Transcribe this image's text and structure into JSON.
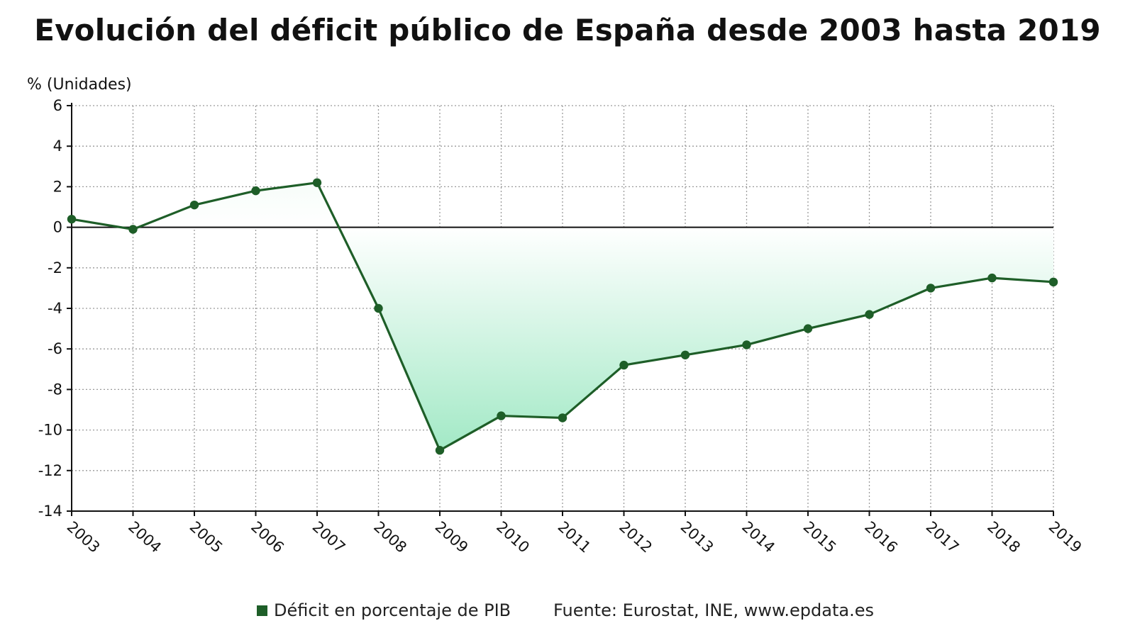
{
  "chart_data": {
    "type": "area",
    "title": "Evolución del déficit público de España desde 2003 hasta 2019",
    "ylabel": "% (Unidades)",
    "xlabel": "",
    "x": [
      "2003",
      "2004",
      "2005",
      "2006",
      "2007",
      "2008",
      "2009",
      "2010",
      "2011",
      "2012",
      "2013",
      "2014",
      "2015",
      "2016",
      "2017",
      "2018",
      "2019"
    ],
    "series": [
      {
        "name": "Déficit en porcentaje de PIB",
        "values": [
          0.4,
          -0.1,
          1.1,
          1.8,
          2.2,
          -4.0,
          -11.0,
          -9.3,
          -9.4,
          -6.8,
          -6.3,
          -5.8,
          -5.0,
          -4.3,
          -3.0,
          -2.5,
          -2.7
        ]
      }
    ],
    "ylim": [
      -14,
      6
    ],
    "yticks": [
      6,
      4,
      2,
      0,
      -2,
      -4,
      -6,
      -8,
      -10,
      -12,
      -14
    ],
    "grid": true,
    "legend_position": "bottom",
    "source": "Fuente: Eurostat, INE, www.epdata.es",
    "colors": {
      "line": "#1e5e28",
      "marker": "#1e5e28",
      "fill_top": "#9ee8c3",
      "fill_zero": "#ffffff",
      "grid": "#9a9a9a",
      "axis": "#111111",
      "legend_swatch": "#1e5e28"
    }
  }
}
